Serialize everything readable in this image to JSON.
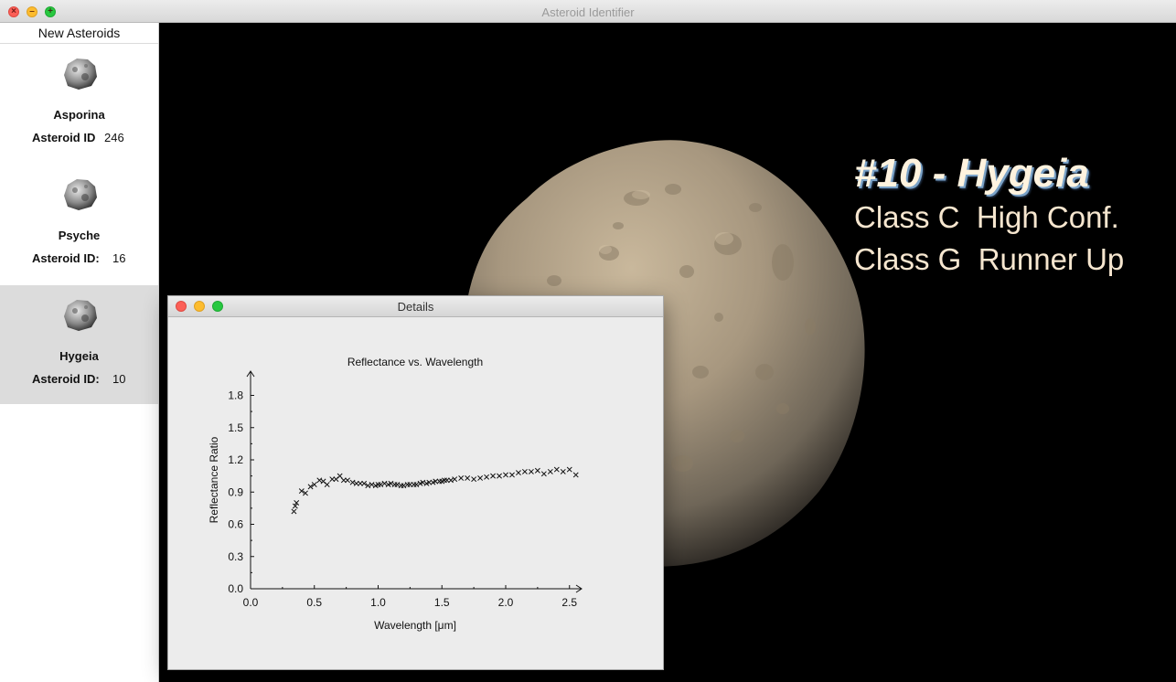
{
  "window": {
    "title": "Asteroid Identifier"
  },
  "sidebar": {
    "header": "New Asteroids",
    "items": [
      {
        "name": "Asporina",
        "id_label": "Asteroid ID",
        "id_value": "246",
        "selected": false
      },
      {
        "name": "Psyche",
        "id_label": "Asteroid ID:",
        "id_value": "16",
        "selected": false
      },
      {
        "name": "Hygeia",
        "id_label": "Asteroid ID:",
        "id_value": "10",
        "selected": true
      }
    ]
  },
  "overlay": {
    "title": "#10 - Hygeia",
    "line1": "Class C  High Conf.",
    "line2": "Class G  Runner Up"
  },
  "details": {
    "title": "Details"
  },
  "chart_data": {
    "type": "scatter",
    "title": "Reflectance vs. Wavelength",
    "xlabel": "Wavelength [μm]",
    "ylabel": "Reflectance Ratio",
    "xlim": [
      0.0,
      2.6
    ],
    "ylim": [
      0.0,
      2.0
    ],
    "xticks": [
      "0.0",
      "0.5",
      "1.0",
      "1.5",
      "2.0",
      "2.5"
    ],
    "yticks": [
      "0.0",
      "0.3",
      "0.6",
      "0.9",
      "1.2",
      "1.5",
      "1.8"
    ],
    "marker": "x",
    "x": [
      0.34,
      0.35,
      0.36,
      0.4,
      0.43,
      0.47,
      0.5,
      0.54,
      0.57,
      0.6,
      0.64,
      0.67,
      0.7,
      0.73,
      0.76,
      0.8,
      0.83,
      0.86,
      0.89,
      0.92,
      0.95,
      0.98,
      1.0,
      1.02,
      1.05,
      1.08,
      1.1,
      1.13,
      1.15,
      1.18,
      1.2,
      1.23,
      1.25,
      1.28,
      1.3,
      1.33,
      1.35,
      1.38,
      1.4,
      1.43,
      1.45,
      1.48,
      1.5,
      1.52,
      1.54,
      1.57,
      1.6,
      1.65,
      1.7,
      1.75,
      1.8,
      1.85,
      1.9,
      1.95,
      2.0,
      2.05,
      2.1,
      2.15,
      2.2,
      2.25,
      2.3,
      2.35,
      2.4,
      2.45,
      2.5,
      2.55
    ],
    "y": [
      0.72,
      0.77,
      0.8,
      0.91,
      0.89,
      0.95,
      0.97,
      1.01,
      1.0,
      0.97,
      1.02,
      1.02,
      1.05,
      1.01,
      1.01,
      0.99,
      0.98,
      0.98,
      0.98,
      0.96,
      0.97,
      0.96,
      0.97,
      0.97,
      0.98,
      0.97,
      0.98,
      0.97,
      0.97,
      0.96,
      0.96,
      0.97,
      0.97,
      0.97,
      0.97,
      0.98,
      0.99,
      0.98,
      0.99,
      0.99,
      1.0,
      1.0,
      1.0,
      1.01,
      1.01,
      1.01,
      1.02,
      1.03,
      1.03,
      1.02,
      1.03,
      1.04,
      1.05,
      1.05,
      1.06,
      1.06,
      1.08,
      1.09,
      1.09,
      1.1,
      1.07,
      1.09,
      1.11,
      1.09,
      1.11,
      1.06
    ]
  },
  "colors": {
    "space": "#000000",
    "overlay_text": "#f6e6cf",
    "title_shadow": "#7aa2c7",
    "selected_row": "#dcdcdc"
  }
}
